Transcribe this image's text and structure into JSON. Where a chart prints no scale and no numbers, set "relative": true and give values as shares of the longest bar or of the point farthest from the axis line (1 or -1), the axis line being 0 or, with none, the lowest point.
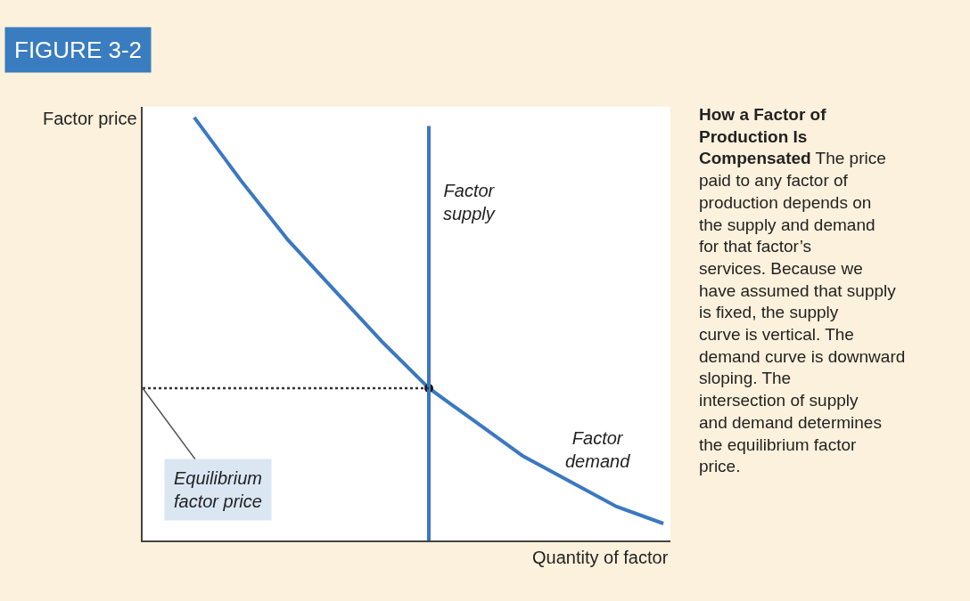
{
  "chart_data": {
    "type": "line",
    "title": "FIGURE 3-2",
    "xlabel": "Quantity of factor",
    "ylabel": "Factor price",
    "relative": true,
    "legend": false,
    "categories": [
      null,
      null,
      null,
      null,
      null,
      null,
      null,
      null,
      null,
      null,
      null
    ],
    "series": [
      {
        "name": "Factor demand",
        "color": "#3a78c2",
        "line_style": "solid",
        "values": [
          1.0,
          0.85,
          0.71,
          0.59,
          0.47,
          0.36,
          0.28,
          0.2,
          0.14,
          0.08,
          0.04
        ]
      }
    ],
    "ref_lines": [
      {
        "axis": "x",
        "label": "Factor supply",
        "color": "#3a78c2",
        "line_style": "solid"
      },
      {
        "axis": "y",
        "value": 0.36,
        "label": "Equilibrium factor price",
        "color": "#333333",
        "line_style": "dotted"
      }
    ],
    "annotations": [
      "How a Factor of Production Is Compensated",
      "The price paid to any factor of production depends on the supply and demand for that factor’s services. Because we have assumed that supply is fixed, the supply curve is vertical. The demand curve is downward sloping. The intersection of supply and demand determines the equilibrium factor price."
    ]
  }
}
